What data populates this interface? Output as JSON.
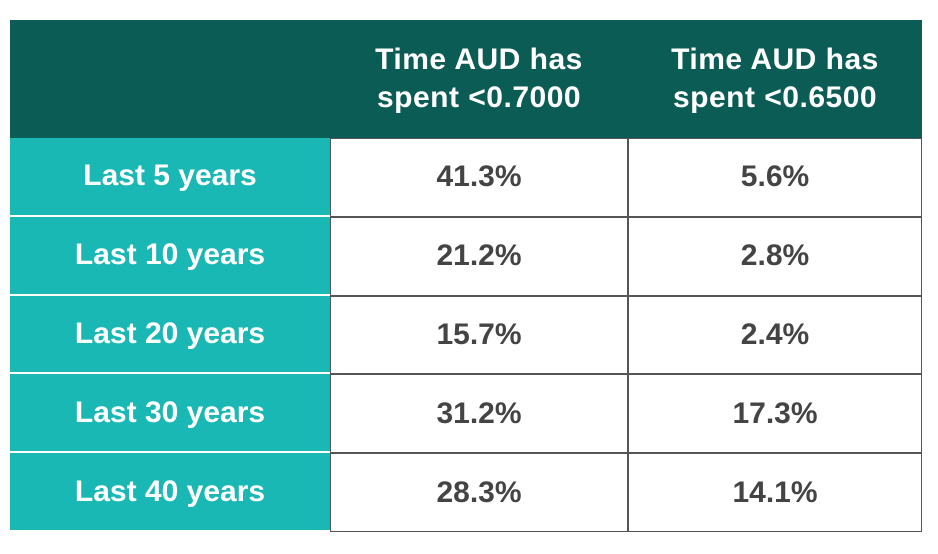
{
  "table": {
    "columns": [
      "Time AUD has spent <0.7000",
      "Time AUD has spent <0.6500"
    ],
    "rows": [
      {
        "label": "Last 5 years",
        "cells": [
          "41.3%",
          "5.6%"
        ]
      },
      {
        "label": "Last 10 years",
        "cells": [
          "21.2%",
          "2.8%"
        ]
      },
      {
        "label": "Last 20 years",
        "cells": [
          "15.7%",
          "2.4%"
        ]
      },
      {
        "label": "Last 30 years",
        "cells": [
          "31.2%",
          "17.3%"
        ]
      },
      {
        "label": "Last 40 years",
        "cells": [
          "28.3%",
          "14.1%"
        ]
      }
    ]
  }
}
